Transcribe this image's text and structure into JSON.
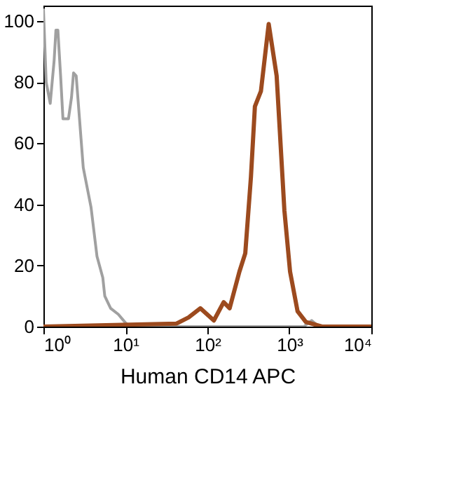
{
  "chart_data": {
    "type": "line",
    "xlabel": "Human CD14 APC",
    "log": "x",
    "grid": false,
    "marker": "none",
    "line_style": "solid",
    "xlim": [
      1,
      10000
    ],
    "xticks": [
      {
        "value": 1,
        "label": "10⁰"
      },
      {
        "value": 10,
        "label": "10¹"
      },
      {
        "value": 100,
        "label": "10²"
      },
      {
        "value": 1000,
        "label": "10³"
      },
      {
        "value": 10000,
        "label": "10⁴"
      }
    ],
    "ylim": [
      0,
      105
    ],
    "yticks": [
      0,
      20,
      40,
      60,
      80,
      100
    ],
    "series": [
      {
        "color": "#a0a0a0",
        "x": [
          1,
          1.08,
          1.21,
          1.35,
          1.42,
          1.5,
          1.62,
          1.73,
          2.02,
          2.2,
          2.33,
          2.51,
          3.06,
          3.81,
          4.5,
          5.3,
          5.6,
          6.6,
          8.2,
          10.2,
          12,
          1500,
          1870,
          2300,
          10000
        ],
        "values": [
          104,
          80,
          73,
          87,
          97,
          97,
          82,
          68,
          68,
          75,
          83,
          82,
          52,
          39,
          23,
          16,
          10,
          6,
          4,
          1,
          0,
          0,
          2,
          0,
          0
        ]
      },
      {
        "color": "#9c4a1e",
        "x": [
          1,
          42,
          59,
          82,
          120,
          158,
          187,
          246,
          290,
          340,
          380,
          450,
          560,
          700,
          870,
          1020,
          1260,
          1590,
          2500,
          10000
        ],
        "values": [
          0,
          1,
          3,
          6,
          2,
          8,
          6,
          18,
          24,
          49,
          72,
          77,
          99,
          82,
          38,
          18,
          5,
          1.5,
          0,
          0
        ]
      }
    ]
  }
}
